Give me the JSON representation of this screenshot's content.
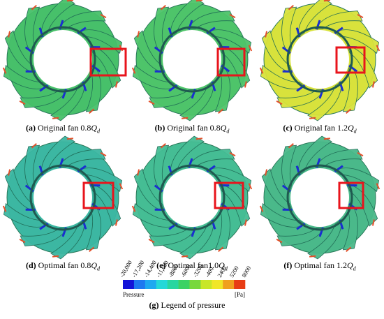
{
  "panels": [
    {
      "letter": "(a)",
      "text": "Original fan 0.8",
      "q": "Q",
      "sub": "d"
    },
    {
      "letter": "(b)",
      "text": "Original fan 0.8",
      "q": "Q",
      "sub": "d"
    },
    {
      "letter": "(c)",
      "text": "Original fan 1.2",
      "q": "Q",
      "sub": "d"
    },
    {
      "letter": "(d)",
      "text": "Optimal fan 0.8",
      "q": "Q",
      "sub": "d"
    },
    {
      "letter": "(e)",
      "text": "Optimal fan1.0",
      "q": "Q",
      "sub": "d"
    },
    {
      "letter": "(f)",
      "text": "Optimal fan 1.2",
      "q": "Q",
      "sub": "d"
    }
  ],
  "legend": {
    "ticks": [
      "-20,000",
      "-17,200",
      "-14,400",
      "-11,600",
      "-8800",
      "-6000",
      "-3200",
      "-400",
      "2400",
      "5200",
      "8000"
    ],
    "left_label": "Pressure",
    "unit": "[Pa]",
    "caption_letter": "(g)",
    "caption_text": "Legend of pressure"
  }
}
